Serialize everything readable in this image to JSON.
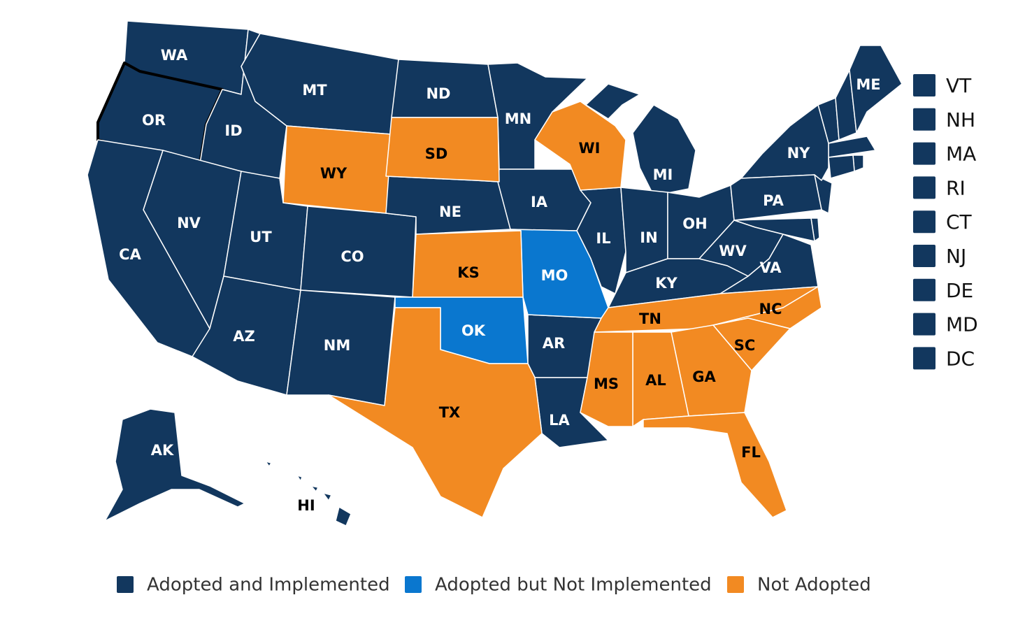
{
  "legend": [
    {
      "label": "Adopted and Implemented",
      "color": "#12375e",
      "states": [
        "WA",
        "OR",
        "ID",
        "MT",
        "ND",
        "MN",
        "MI",
        "NY",
        "ME",
        "NV",
        "CA",
        "UT",
        "CO",
        "NE",
        "IA",
        "IL",
        "IN",
        "OH",
        "PA",
        "WV",
        "VA",
        "KY",
        "AZ",
        "NM",
        "AR",
        "LA",
        "AK",
        "HI"
      ]
    },
    {
      "label": "Adopted but Not Implemented",
      "color": "#0a77cf",
      "states": [
        "MO",
        "OK"
      ]
    },
    {
      "label": "Not Adopted",
      "color": "#f28a22",
      "states": [
        "WY",
        "SD",
        "WI",
        "KS",
        "TX",
        "TN",
        "NC",
        "SC",
        "GA",
        "AL",
        "MS",
        "FL"
      ]
    }
  ],
  "small_states": [
    "VT",
    "NH",
    "MA",
    "RI",
    "CT",
    "NJ",
    "DE",
    "MD",
    "DC"
  ]
}
